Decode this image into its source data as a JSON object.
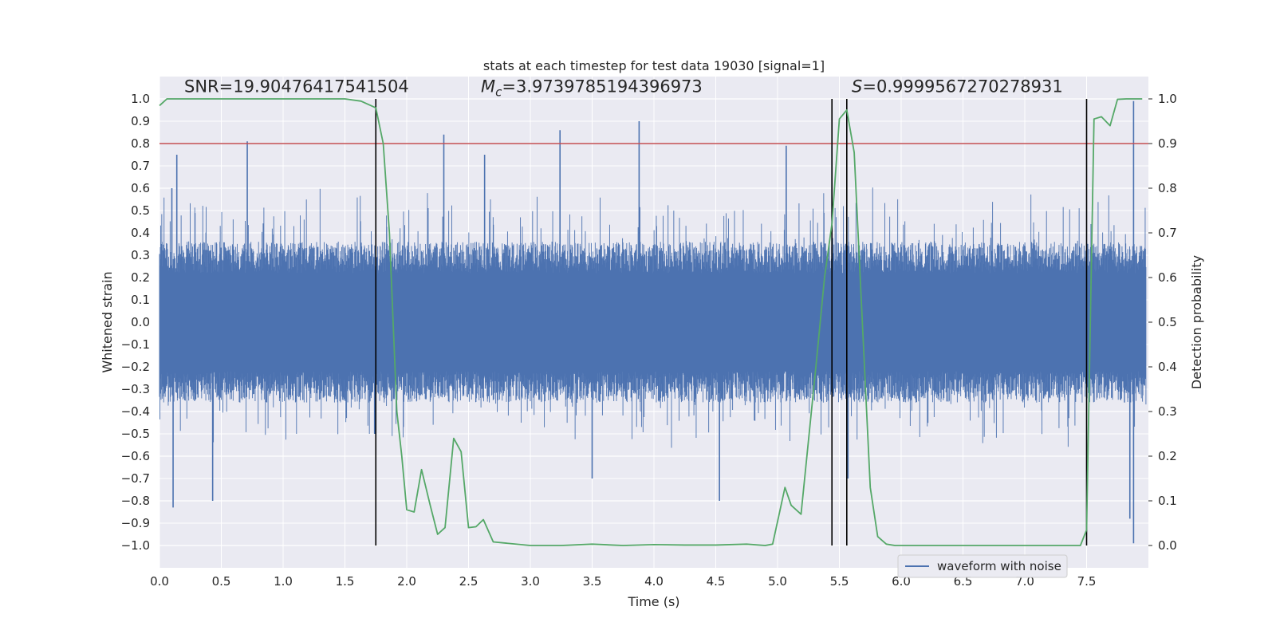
{
  "chart_data": {
    "type": "line",
    "title": "stats at each timestep for test data 19030 [signal=1]",
    "xlabel": "Time (s)",
    "ylabel_left": "Whitened strain",
    "ylabel_right": "Detection probability",
    "xlim": [
      0.0,
      8.0
    ],
    "ylim_left": [
      -1.1,
      1.1
    ],
    "ylim_right": [
      -0.05,
      1.05
    ],
    "x_ticks": [
      0.0,
      0.5,
      1.0,
      1.5,
      2.0,
      2.5,
      3.0,
      3.5,
      4.0,
      4.5,
      5.0,
      5.5,
      6.0,
      6.5,
      7.0,
      7.5
    ],
    "x_tick_labels": [
      "0.0",
      "0.5",
      "1.0",
      "1.5",
      "2.0",
      "2.5",
      "3.0",
      "3.5",
      "4.0",
      "4.5",
      "5.0",
      "5.5",
      "6.0",
      "6.5",
      "7.0",
      "7.5"
    ],
    "y_left_ticks": [
      1.0,
      0.9,
      0.8,
      0.7,
      0.6,
      0.5,
      0.4,
      0.3,
      0.2,
      0.1,
      0.0,
      -0.1,
      -0.2,
      -0.3,
      -0.4,
      -0.5,
      -0.6,
      -0.7,
      -0.8,
      -0.9,
      -1.0
    ],
    "y_left_tick_labels": [
      "1.0",
      "0.9",
      "0.8",
      "0.7",
      "0.6",
      "0.5",
      "0.4",
      "0.3",
      "0.2",
      "0.1",
      "0.0",
      "−0.1",
      "−0.2",
      "−0.3",
      "−0.4",
      "−0.5",
      "−0.6",
      "−0.7",
      "−0.8",
      "−0.9",
      "−1.0"
    ],
    "y_right_ticks": [
      1.0,
      0.9,
      0.8,
      0.7,
      0.6,
      0.5,
      0.4,
      0.3,
      0.2,
      0.1,
      0.0
    ],
    "y_right_tick_labels": [
      "1.0",
      "0.9",
      "0.8",
      "0.7",
      "0.6",
      "0.5",
      "0.4",
      "0.3",
      "0.2",
      "0.1",
      "0.0"
    ],
    "threshold": {
      "axis": "right",
      "value": 0.9,
      "color": "#c44e52"
    },
    "vertical_markers": {
      "x": [
        1.75,
        5.44,
        5.56,
        7.5
      ],
      "ymin": -1.0,
      "ymax": 1.0,
      "color": "#000000"
    },
    "annotations": {
      "snr": {
        "label": "SNR=19.90476417541504",
        "x": 0.2,
        "y": 1.03
      },
      "mc": {
        "symbol": "M",
        "subscript": "c",
        "value": "=3.9739785194396973",
        "x": 2.6,
        "y": 1.03
      },
      "s": {
        "symbol": "S",
        "value": "=0.9999567270278931",
        "x": 5.6,
        "y": 1.03
      }
    },
    "legend": {
      "label": "waveform with noise",
      "location": "lower-center-right"
    },
    "series": [
      {
        "name": "waveform with noise",
        "axis": "left",
        "color": "#4c72b0",
        "style": "dense noise, envelope ≈ ±0.35 with spikes up to ±0.8",
        "peaks_pos": [
          [
            0.1,
            0.6
          ],
          [
            0.14,
            0.75
          ],
          [
            0.71,
            0.81
          ],
          [
            2.3,
            0.84
          ],
          [
            2.63,
            0.75
          ],
          [
            3.24,
            0.86
          ],
          [
            3.88,
            0.9
          ],
          [
            5.07,
            0.79
          ],
          [
            5.44,
            0.79
          ],
          [
            7.88,
            0.99
          ]
        ],
        "peaks_neg": [
          [
            0.11,
            -0.83
          ],
          [
            0.43,
            -0.8
          ],
          [
            1.74,
            -0.5
          ],
          [
            3.5,
            -0.7
          ],
          [
            4.53,
            -0.8
          ],
          [
            5.57,
            -0.7
          ],
          [
            7.85,
            -0.88
          ],
          [
            7.88,
            -0.99
          ]
        ]
      },
      {
        "name": "detection probability",
        "axis": "right",
        "color": "#55a868",
        "x": [
          0.0,
          0.06,
          0.2,
          0.5,
          1.0,
          1.5,
          1.63,
          1.75,
          1.81,
          1.86,
          1.92,
          1.96,
          2.0,
          2.06,
          2.12,
          2.19,
          2.25,
          2.31,
          2.38,
          2.44,
          2.5,
          2.56,
          2.62,
          2.7,
          3.0,
          3.25,
          3.5,
          3.75,
          4.0,
          4.25,
          4.5,
          4.75,
          4.9,
          4.96,
          5.06,
          5.11,
          5.19,
          5.31,
          5.38,
          5.44,
          5.5,
          5.56,
          5.62,
          5.75,
          5.81,
          5.88,
          5.95,
          6.0,
          6.5,
          7.0,
          7.45,
          7.5,
          7.56,
          7.62,
          7.69,
          7.75,
          7.82,
          7.88,
          7.95
        ],
        "y": [
          0.985,
          1.0,
          1.0,
          1.0,
          1.0,
          1.0,
          0.995,
          0.98,
          0.9,
          0.7,
          0.3,
          0.2,
          0.08,
          0.075,
          0.17,
          0.09,
          0.025,
          0.04,
          0.24,
          0.21,
          0.04,
          0.042,
          0.058,
          0.008,
          0.0,
          0.0,
          0.003,
          0.0,
          0.002,
          0.001,
          0.001,
          0.003,
          0.0,
          0.003,
          0.13,
          0.09,
          0.07,
          0.4,
          0.6,
          0.72,
          0.955,
          0.975,
          0.88,
          0.13,
          0.02,
          0.003,
          0.0,
          0.0,
          0.0,
          0.0,
          0.0,
          0.035,
          0.955,
          0.96,
          0.94,
          0.999,
          1.0,
          1.0,
          1.0
        ]
      }
    ]
  }
}
